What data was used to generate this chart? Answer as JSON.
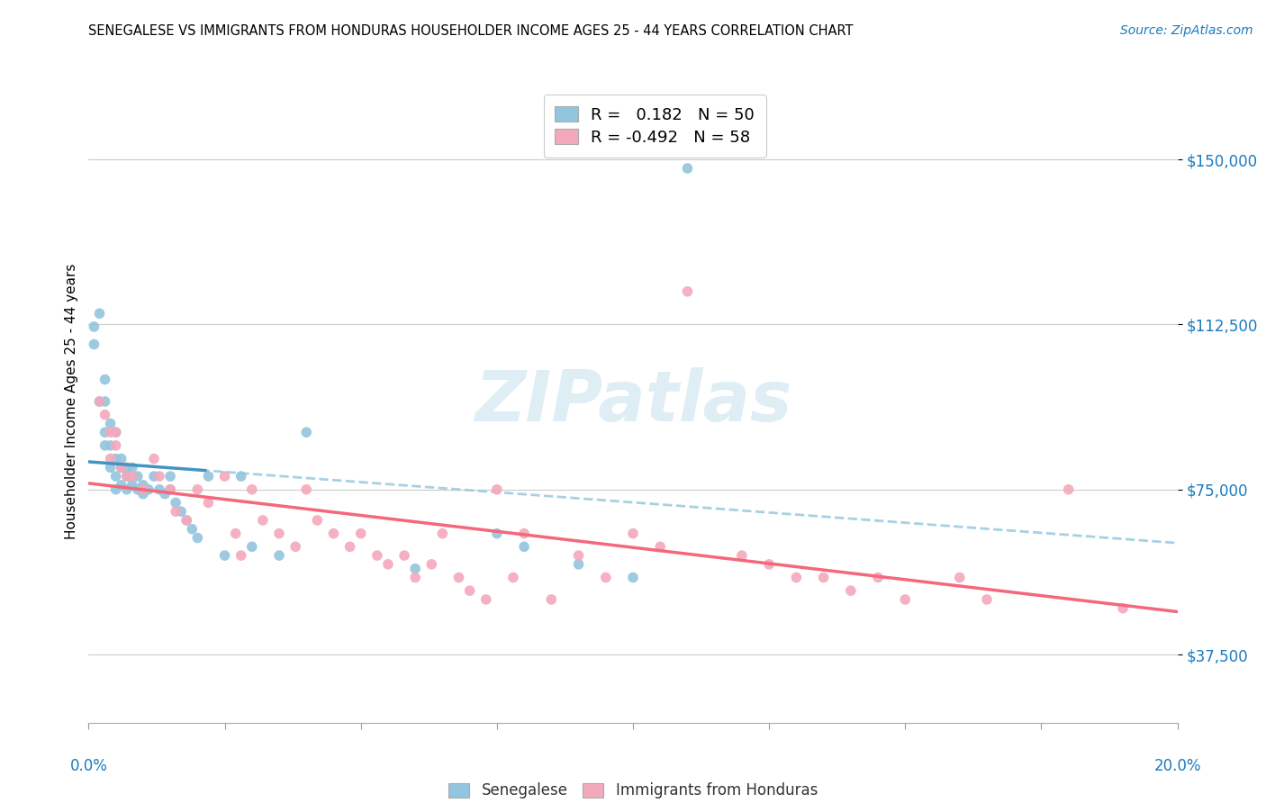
{
  "title": "SENEGALESE VS IMMIGRANTS FROM HONDURAS HOUSEHOLDER INCOME AGES 25 - 44 YEARS CORRELATION CHART",
  "source": "Source: ZipAtlas.com",
  "ylabel": "Householder Income Ages 25 - 44 years",
  "yticks": [
    37500,
    75000,
    112500,
    150000
  ],
  "ytick_labels": [
    "$37,500",
    "$75,000",
    "$112,500",
    "$150,000"
  ],
  "xmin": 0.0,
  "xmax": 0.2,
  "ymin": 22000,
  "ymax": 168000,
  "color_blue": "#92c5de",
  "color_pink": "#f4a8bb",
  "color_blue_line": "#4393c3",
  "color_blue_dash": "#92c5de",
  "color_pink_line": "#f4687a",
  "color_text_blue": "#1a7abf",
  "sen_x": [
    0.001,
    0.001,
    0.002,
    0.002,
    0.003,
    0.003,
    0.003,
    0.003,
    0.004,
    0.004,
    0.004,
    0.005,
    0.005,
    0.005,
    0.005,
    0.006,
    0.006,
    0.006,
    0.007,
    0.007,
    0.007,
    0.008,
    0.008,
    0.009,
    0.009,
    0.01,
    0.01,
    0.011,
    0.012,
    0.013,
    0.014,
    0.015,
    0.015,
    0.016,
    0.017,
    0.018,
    0.019,
    0.02,
    0.022,
    0.025,
    0.028,
    0.03,
    0.035,
    0.04,
    0.06,
    0.075,
    0.08,
    0.09,
    0.1,
    0.11
  ],
  "sen_y": [
    112000,
    108000,
    115000,
    95000,
    100000,
    95000,
    88000,
    85000,
    90000,
    85000,
    80000,
    88000,
    82000,
    78000,
    75000,
    82000,
    80000,
    76000,
    80000,
    78000,
    75000,
    80000,
    76000,
    78000,
    75000,
    76000,
    74000,
    75000,
    78000,
    75000,
    74000,
    78000,
    75000,
    72000,
    70000,
    68000,
    66000,
    64000,
    78000,
    60000,
    78000,
    62000,
    60000,
    88000,
    57000,
    65000,
    62000,
    58000,
    55000,
    148000
  ],
  "hon_x": [
    0.002,
    0.003,
    0.004,
    0.004,
    0.005,
    0.005,
    0.006,
    0.007,
    0.008,
    0.01,
    0.012,
    0.013,
    0.015,
    0.016,
    0.018,
    0.02,
    0.022,
    0.025,
    0.027,
    0.028,
    0.03,
    0.032,
    0.035,
    0.038,
    0.04,
    0.042,
    0.045,
    0.048,
    0.05,
    0.053,
    0.055,
    0.058,
    0.06,
    0.063,
    0.065,
    0.068,
    0.07,
    0.073,
    0.075,
    0.078,
    0.08,
    0.085,
    0.09,
    0.095,
    0.1,
    0.105,
    0.11,
    0.12,
    0.125,
    0.13,
    0.135,
    0.14,
    0.145,
    0.15,
    0.16,
    0.165,
    0.18,
    0.19
  ],
  "hon_y": [
    95000,
    92000,
    88000,
    82000,
    88000,
    85000,
    80000,
    78000,
    78000,
    75000,
    82000,
    78000,
    75000,
    70000,
    68000,
    75000,
    72000,
    78000,
    65000,
    60000,
    75000,
    68000,
    65000,
    62000,
    75000,
    68000,
    65000,
    62000,
    65000,
    60000,
    58000,
    60000,
    55000,
    58000,
    65000,
    55000,
    52000,
    50000,
    75000,
    55000,
    65000,
    50000,
    60000,
    55000,
    65000,
    62000,
    120000,
    60000,
    58000,
    55000,
    55000,
    52000,
    55000,
    50000,
    55000,
    50000,
    75000,
    48000
  ]
}
